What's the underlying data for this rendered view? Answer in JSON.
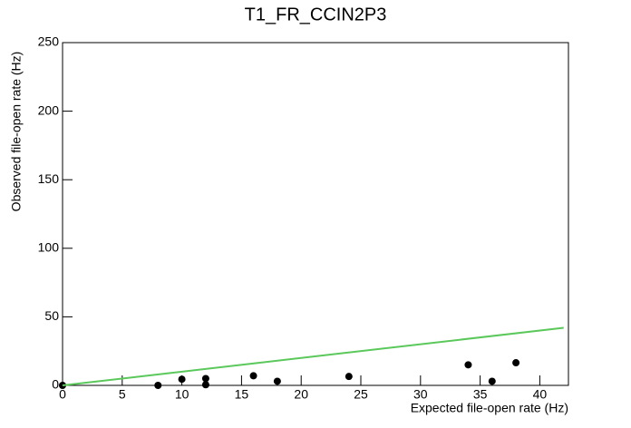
{
  "chart_data": {
    "type": "scatter",
    "title": "T1_FR_CCIN2P3",
    "xlabel": "Expected file-open rate (Hz)",
    "ylabel": "Observed file-open rate (Hz)",
    "xlim": [
      0,
      42.4
    ],
    "ylim": [
      0,
      250
    ],
    "xticks": [
      0,
      5,
      10,
      15,
      20,
      25,
      30,
      35,
      40
    ],
    "yticks": [
      0,
      50,
      100,
      150,
      200,
      250
    ],
    "series": [
      {
        "color": "#000000",
        "x": [
          0,
          8,
          10,
          12,
          12,
          16,
          18,
          24,
          34,
          36,
          38
        ],
        "values": [
          0,
          0,
          4.5,
          5,
          0.5,
          7,
          3,
          6.5,
          15,
          3,
          16.5
        ]
      },
      {
        "color": "#5ac85a",
        "line": true,
        "x": [
          0,
          42
        ],
        "values": [
          0,
          42
        ]
      }
    ]
  }
}
